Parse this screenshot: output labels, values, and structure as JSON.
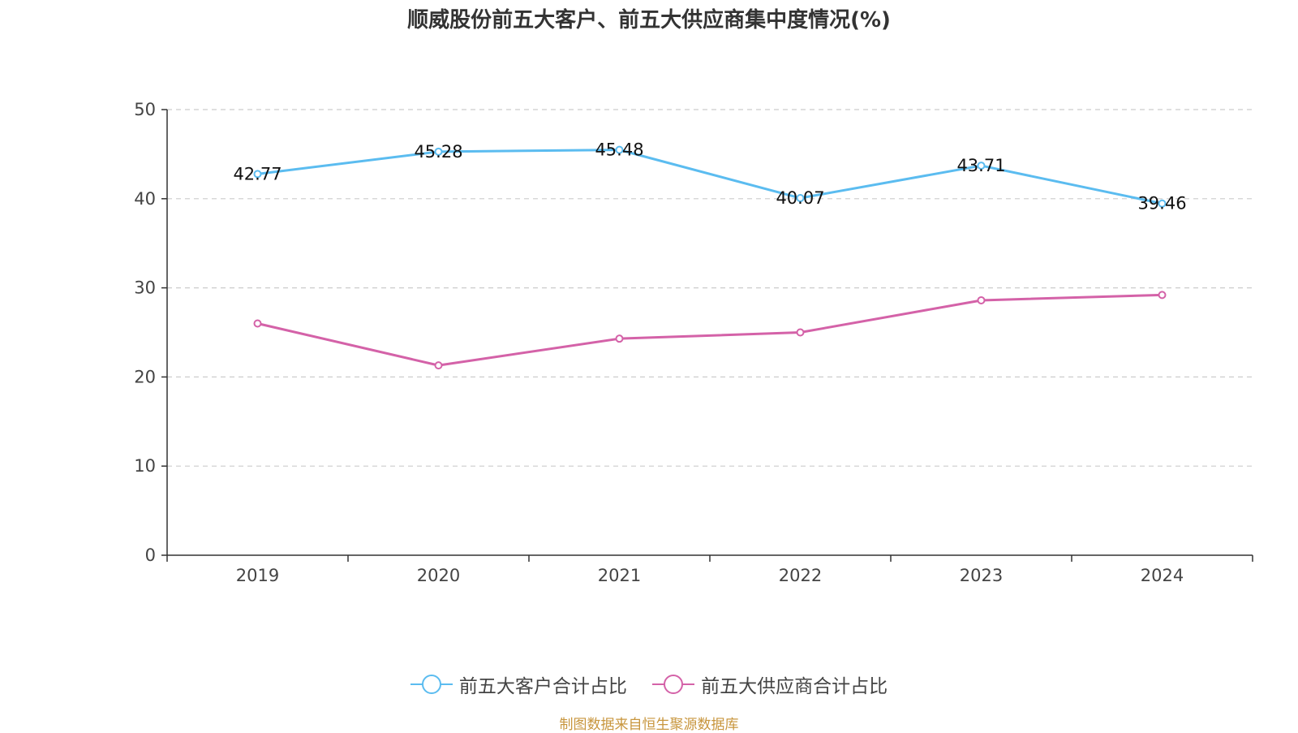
{
  "title": "顺威股份前五大客户、前五大供应商集中度情况(%)",
  "source": "制图数据来自恒生聚源数据库",
  "chart_data": {
    "type": "line",
    "categories": [
      "2019",
      "2020",
      "2021",
      "2022",
      "2023",
      "2024"
    ],
    "ylim": [
      0,
      50
    ],
    "yticks": [
      "0",
      "10",
      "20",
      "30",
      "40",
      "50"
    ],
    "grid": true,
    "legend_position": "bottom",
    "series": [
      {
        "name": "前五大客户合计占比",
        "color": "#5bbcf0",
        "values": [
          42.77,
          45.28,
          45.48,
          40.07,
          43.71,
          39.46
        ],
        "labels": [
          "42.77",
          "45.28",
          "45.48",
          "40.07",
          "43.71",
          "39.46"
        ]
      },
      {
        "name": "前五大供应商合计占比",
        "color": "#d462a8",
        "values": [
          26.0,
          21.3,
          24.3,
          25.0,
          28.6,
          29.2
        ]
      }
    ]
  }
}
